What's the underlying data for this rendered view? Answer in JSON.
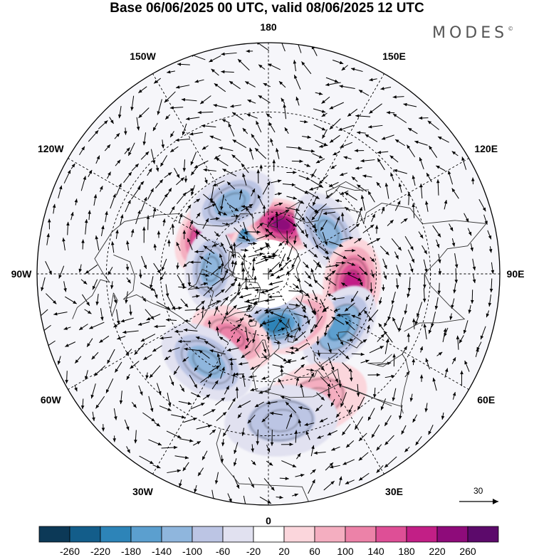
{
  "title": "Base 06/06/2025 00 UTC, valid 08/06/2025 12 UTC",
  "brand": {
    "name": "MODES",
    "mark": "©"
  },
  "map": {
    "projection": "north polar stereographic",
    "center": "North Pole",
    "meridian_labels": [
      {
        "text": "180",
        "lon": 180
      },
      {
        "text": "150E",
        "lon": 150
      },
      {
        "text": "120E",
        "lon": 120
      },
      {
        "text": "90E",
        "lon": 90
      },
      {
        "text": "60E",
        "lon": 60
      },
      {
        "text": "30E",
        "lon": 30
      },
      {
        "text": "0",
        "lon": 0
      },
      {
        "text": "30W",
        "lon": -30
      },
      {
        "text": "60W",
        "lon": -60
      },
      {
        "text": "90W",
        "lon": -90
      },
      {
        "text": "120W",
        "lon": -120
      },
      {
        "text": "150W",
        "lon": -150
      }
    ],
    "vector_reference": "30",
    "anomaly_centers": [
      {
        "sign": "negative",
        "lat": 65,
        "lon": -160,
        "strength": 200
      },
      {
        "sign": "positive",
        "lat": 65,
        "lon": 165,
        "strength": 240
      },
      {
        "sign": "positive",
        "lat": 55,
        "lon": -125,
        "strength": 240
      },
      {
        "sign": "negative",
        "lat": 52,
        "lon": -153,
        "strength": 100
      },
      {
        "sign": "negative",
        "lat": 55,
        "lon": 125,
        "strength": 120
      },
      {
        "sign": "positive",
        "lat": 50,
        "lon": 83,
        "strength": 200
      },
      {
        "sign": "negative",
        "lat": 48,
        "lon": 53,
        "strength": 160
      },
      {
        "sign": "positive",
        "lat": 62,
        "lon": 30,
        "strength": 160
      },
      {
        "sign": "negative",
        "lat": 65,
        "lon": 10,
        "strength": 200
      },
      {
        "sign": "positive",
        "lat": 55,
        "lon": -30,
        "strength": 100
      },
      {
        "sign": "negative",
        "lat": 40,
        "lon": -35,
        "strength": 100
      },
      {
        "sign": "negative",
        "lat": 62,
        "lon": -95,
        "strength": 120
      },
      {
        "sign": "positive",
        "lat": 30,
        "lon": 20,
        "strength": 60
      },
      {
        "sign": "negative",
        "lat": 25,
        "lon": 5,
        "strength": 60
      }
    ]
  },
  "colorbar": {
    "ticks": [
      "-260",
      "-220",
      "-180",
      "-140",
      "-100",
      "-60",
      "-20",
      "20",
      "60",
      "100",
      "140",
      "180",
      "220",
      "260"
    ],
    "colors": [
      "#0c3957",
      "#135d8a",
      "#2d84b8",
      "#5b9fcf",
      "#8fb6dd",
      "#bcc5e4",
      "#e1e1f0",
      "#ffffff",
      "#fbd6dc",
      "#f4aec0",
      "#ec82a8",
      "#de4f96",
      "#c21f86",
      "#8e0b7a",
      "#5c0a6b"
    ]
  }
}
